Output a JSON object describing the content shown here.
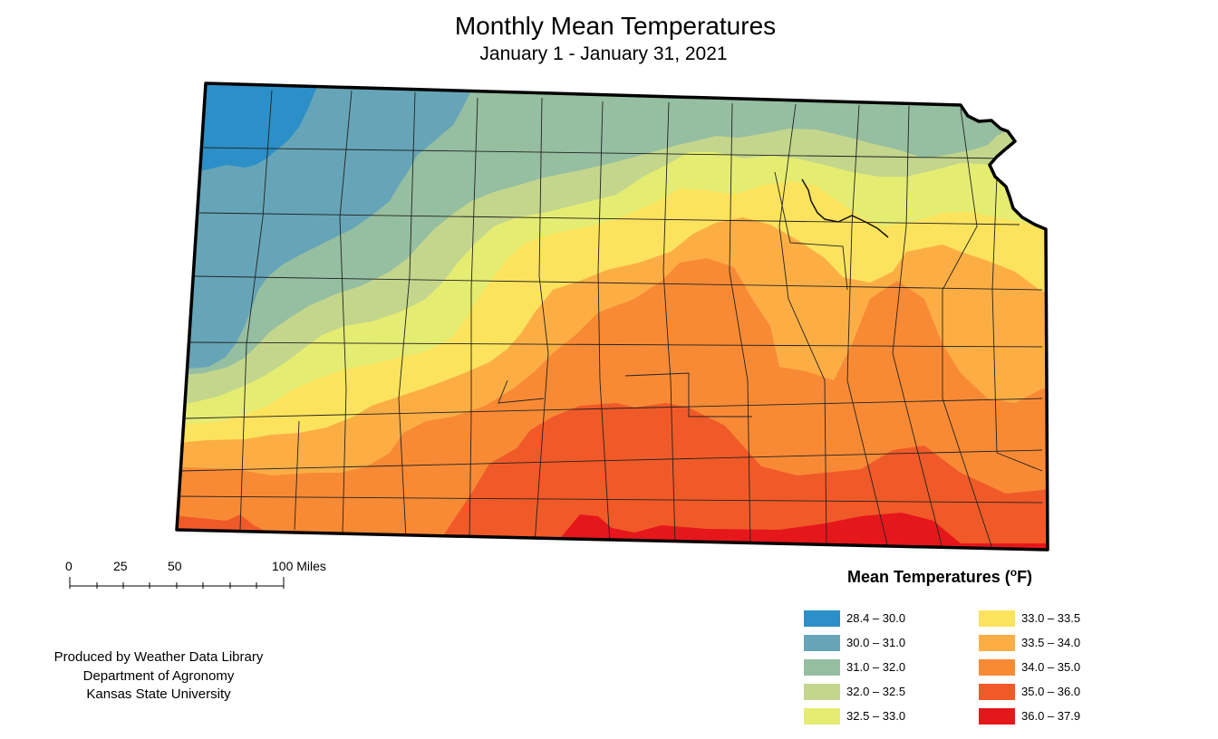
{
  "title": "Monthly Mean Temperatures",
  "subtitle": "January 1 - January 31, 2021",
  "legend": {
    "title": "Mean Temperatures (",
    "degree": "o",
    "title_end": "F)",
    "items": [
      {
        "label": "28.4 – 30.0",
        "color": "#2c8fc8"
      },
      {
        "label": "30.0 – 31.0",
        "color": "#66a5b7"
      },
      {
        "label": "31.0 – 32.0",
        "color": "#96bea0"
      },
      {
        "label": "32.0 – 32.5",
        "color": "#c3d68c"
      },
      {
        "label": "32.5 – 33.0",
        "color": "#e5ec72"
      },
      {
        "label": "33.0 – 33.5",
        "color": "#fbe35d"
      },
      {
        "label": "33.5 – 34.0",
        "color": "#fcae45"
      },
      {
        "label": "34.0 – 35.0",
        "color": "#f98a35"
      },
      {
        "label": "35.0 – 36.0",
        "color": "#f05a28"
      },
      {
        "label": "36.0 – 37.9",
        "color": "#e5171b"
      }
    ]
  },
  "scale_bar": {
    "labels": [
      "0",
      "25",
      "50",
      "100 Miles"
    ]
  },
  "credits": {
    "line1": "Produced by Weather Data Library",
    "line2": "Department of Agronomy",
    "line3": "Kansas State University"
  }
}
